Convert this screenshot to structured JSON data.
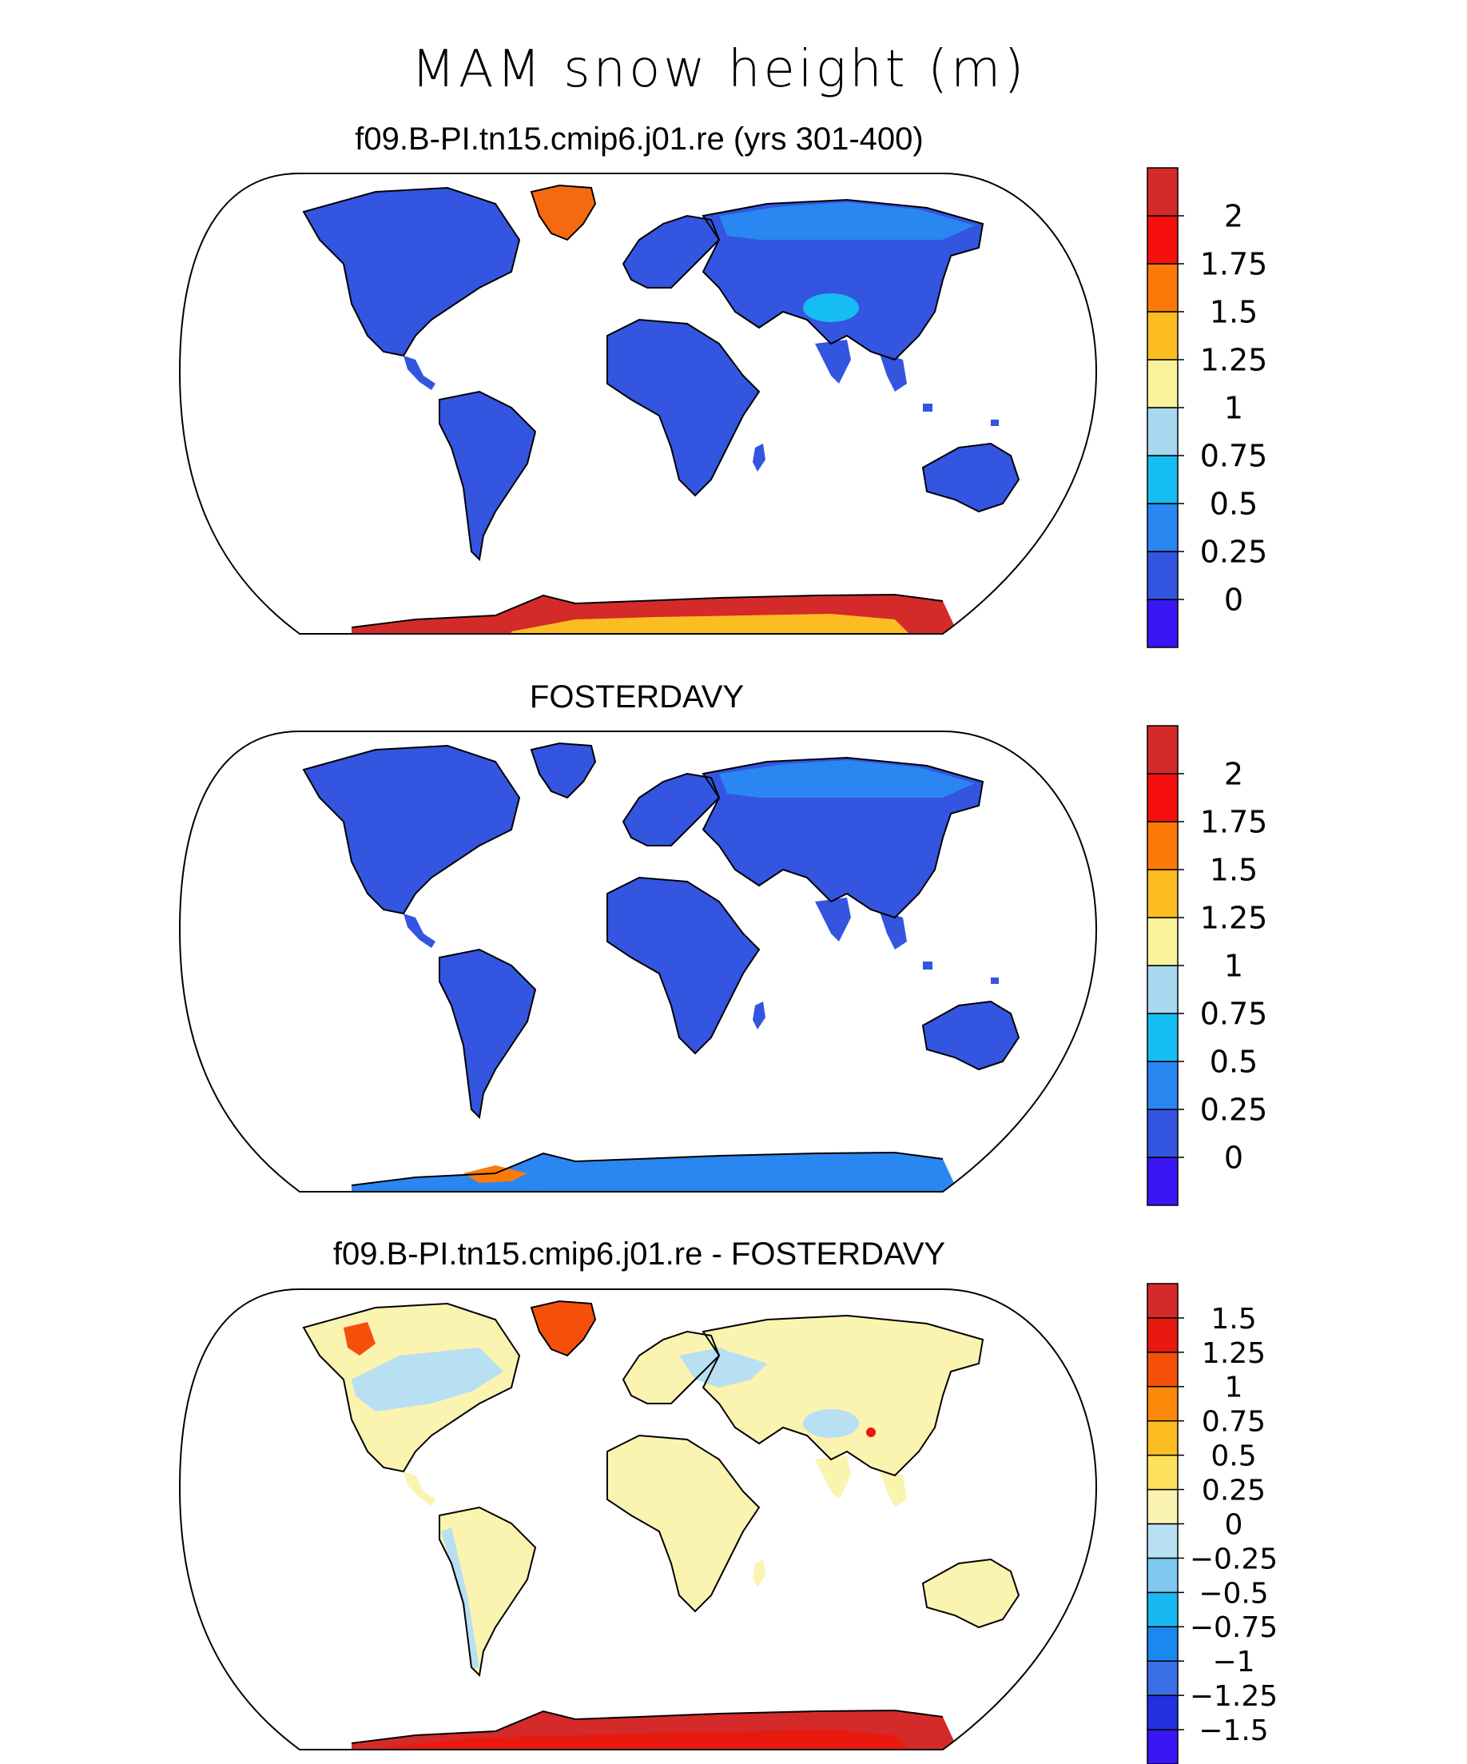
{
  "figure_title": "MAM snow height (m)",
  "colors": {
    "land_base": "#3355e0",
    "ocean": "#ffffff",
    "coast": "#000000",
    "abs_scale": [
      "#3a16f5",
      "#3355e0",
      "#2a86f0",
      "#15bdf2",
      "#a8d8f0",
      "#faf29a",
      "#fcbd22",
      "#fb7a0a",
      "#f50f0f",
      "#d42a2a"
    ],
    "diff_scale": [
      "#3a16f5",
      "#2230e0",
      "#3b6fe8",
      "#1a88ee",
      "#18b8f2",
      "#7ec8f0",
      "#b8dff2",
      "#fbf3b0",
      "#fde15e",
      "#fcbd22",
      "#fb8a0a",
      "#f5500a",
      "#e81a10",
      "#d42a2a"
    ]
  },
  "panels": [
    {
      "title": "f09.B-PI.tn15.cmip6.j01.re (yrs 301-400)",
      "colorbar_labels": [
        "2",
        "1.75",
        "1.5",
        "1.25",
        "1",
        "0.75",
        "0.5",
        "0.25",
        "0"
      ],
      "highlights": {
        "greenland": "#f56a10",
        "antarctica": "#d42a2a",
        "antarctica_band": "#fcbd22",
        "siberia": "#2a86f0",
        "tibet": "#15bdf2"
      }
    },
    {
      "title": "FOSTERDAVY",
      "colorbar_labels": [
        "2",
        "1.75",
        "1.5",
        "1.25",
        "1",
        "0.75",
        "0.5",
        "0.25",
        "0"
      ],
      "highlights": {
        "greenland": "#3355e0",
        "antarctica": "#2a86f0",
        "antarctica_band": "#2a86f0",
        "siberia": "#2a86f0",
        "tibet": "#3355e0"
      }
    },
    {
      "title": "f09.B-PI.tn15.cmip6.j01.re - FOSTERDAVY",
      "colorbar_labels": [
        "1.5",
        "1.25",
        "1",
        "0.75",
        "0.5",
        "0.25",
        "0",
        "−0.25",
        "−0.5",
        "−0.75",
        "−1",
        "−1.25",
        "−1.5"
      ],
      "highlights": {
        "greenland": "#f5500a",
        "antarctica": "#d42a2a",
        "antarctica_band": "#e81a10",
        "siberia": "#fbf3b0",
        "tibet": "#b8dff2"
      }
    }
  ]
}
